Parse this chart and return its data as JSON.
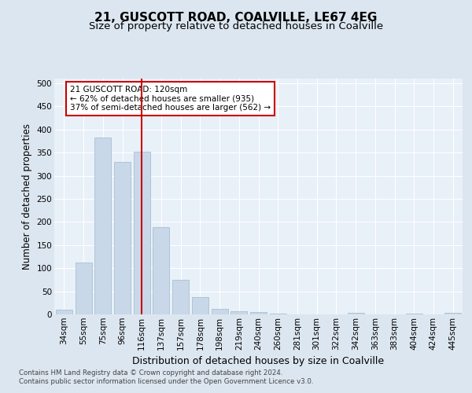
{
  "title": "21, GUSCOTT ROAD, COALVILLE, LE67 4EG",
  "subtitle": "Size of property relative to detached houses in Coalville",
  "xlabel": "Distribution of detached houses by size in Coalville",
  "ylabel": "Number of detached properties",
  "categories": [
    "34sqm",
    "55sqm",
    "75sqm",
    "96sqm",
    "116sqm",
    "137sqm",
    "157sqm",
    "178sqm",
    "198sqm",
    "219sqm",
    "240sqm",
    "260sqm",
    "281sqm",
    "301sqm",
    "322sqm",
    "342sqm",
    "363sqm",
    "383sqm",
    "404sqm",
    "424sqm",
    "445sqm"
  ],
  "values": [
    10,
    113,
    383,
    330,
    352,
    188,
    75,
    38,
    12,
    6,
    5,
    1,
    0,
    0,
    0,
    3,
    0,
    0,
    2,
    0,
    3
  ],
  "bar_color": "#c8d8e8",
  "bar_edge_color": "#a0b8cc",
  "vline_color": "#cc0000",
  "vline_index": 4,
  "marker_label": "21 GUSCOTT ROAD: 120sqm",
  "annotation_line1": "← 62% of detached houses are smaller (935)",
  "annotation_line2": "37% of semi-detached houses are larger (562) →",
  "ylim": [
    0,
    510
  ],
  "yticks": [
    0,
    50,
    100,
    150,
    200,
    250,
    300,
    350,
    400,
    450,
    500
  ],
  "bg_color": "#dce6f0",
  "plot_bg_color": "#e8f0f8",
  "grid_color": "#ffffff",
  "annotation_box_color": "#ffffff",
  "annotation_box_edge": "#cc0000",
  "footer1": "Contains HM Land Registry data © Crown copyright and database right 2024.",
  "footer2": "Contains public sector information licensed under the Open Government Licence v3.0.",
  "title_fontsize": 11,
  "subtitle_fontsize": 9.5,
  "tick_fontsize": 7.5,
  "ylabel_fontsize": 8.5,
  "xlabel_fontsize": 9
}
